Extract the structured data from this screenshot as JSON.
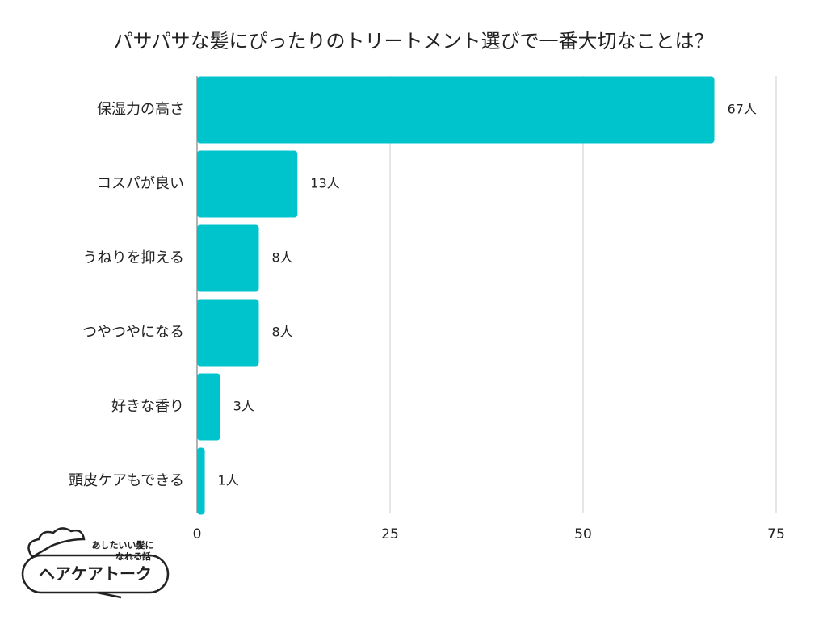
{
  "chart_data": {
    "type": "barh",
    "title": "パサパサな髪にぴったりのトリートメント選びで一番大切なことは？",
    "categories": [
      "保湿力の高さ",
      "コスパが良い",
      "うねりを抑える",
      "つやつやになる",
      "好きな香り",
      "頭皮ケアもできる"
    ],
    "values": [
      67,
      13,
      8,
      8,
      3,
      1
    ],
    "value_labels": [
      "67人",
      "13人",
      "8人",
      "8人",
      "3人",
      "1人"
    ],
    "color": "#00c4cc",
    "xlim": [
      0,
      75
    ],
    "xticks": [
      0,
      25,
      50,
      75
    ],
    "grid": true
  },
  "logo": {
    "tagline_1": "あしたいい髪に",
    "tagline_2": "なれる話",
    "name": "ヘアケアトーク"
  }
}
